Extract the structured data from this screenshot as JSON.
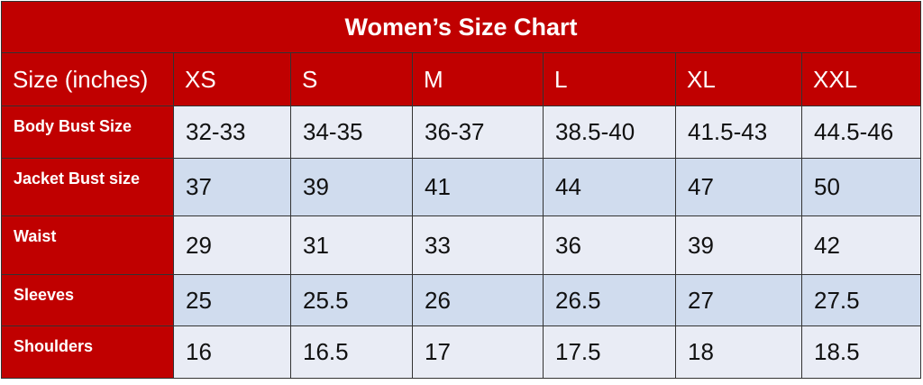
{
  "table": {
    "title": "Women’s Size Chart",
    "header": [
      "Size (inches)",
      "XS",
      "S",
      "M",
      "L",
      "XL",
      "XXL"
    ],
    "rows": [
      [
        "Body Bust Size",
        "32-33",
        "34-35",
        "36-37",
        "38.5-40",
        "41.5-43",
        "44.5-46"
      ],
      [
        "Jacket Bust size",
        "37",
        "39",
        "41",
        "44",
        "47",
        "50"
      ],
      [
        "Waist",
        "29",
        "31",
        "33",
        "36",
        "39",
        "42"
      ],
      [
        "Sleeves",
        "25",
        "25.5",
        "26",
        "26.5",
        "27",
        "27.5"
      ],
      [
        "Shoulders",
        "16",
        "16.5",
        "17",
        "17.5",
        "18",
        "18.5"
      ]
    ]
  }
}
